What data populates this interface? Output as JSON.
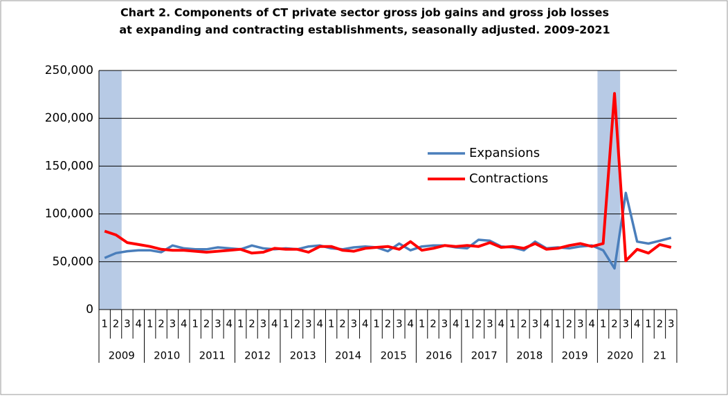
{
  "chart_data": {
    "type": "line",
    "title": [
      "Chart 2. Components of CT private sector gross job gains and gross  job losses",
      "at expanding and contracting establishments, seasonally adjusted.  2009-2021"
    ],
    "groups": [
      {
        "label": "2009",
        "categories": [
          "1",
          "2",
          "3",
          "4"
        ]
      },
      {
        "label": "2010",
        "categories": [
          "1",
          "2",
          "3",
          "4"
        ]
      },
      {
        "label": "2011",
        "categories": [
          "1",
          "2",
          "3",
          "4"
        ]
      },
      {
        "label": "2012",
        "categories": [
          "1",
          "2",
          "3",
          "4"
        ]
      },
      {
        "label": "2013",
        "categories": [
          "1",
          "2",
          "3",
          "4"
        ]
      },
      {
        "label": "2014",
        "categories": [
          "1",
          "2",
          "3",
          "4"
        ]
      },
      {
        "label": "2015",
        "categories": [
          "1",
          "2",
          "3",
          "4"
        ]
      },
      {
        "label": "2016",
        "categories": [
          "1",
          "2",
          "3",
          "4"
        ]
      },
      {
        "label": "2017",
        "categories": [
          "1",
          "2",
          "3",
          "4"
        ]
      },
      {
        "label": "2018",
        "categories": [
          "1",
          "2",
          "3",
          "4"
        ]
      },
      {
        "label": "2019",
        "categories": [
          "1",
          "2",
          "3",
          "4"
        ]
      },
      {
        "label": "2020",
        "categories": [
          "1",
          "2",
          "3",
          "4"
        ]
      },
      {
        "label": "21",
        "categories": [
          "1",
          "2",
          "3"
        ]
      }
    ],
    "series": [
      {
        "name": "Expansions",
        "color": "#4a7ebb",
        "values": [
          54000,
          59000,
          61000,
          62000,
          62000,
          60000,
          67000,
          64000,
          63000,
          63000,
          65000,
          64000,
          63000,
          67000,
          64000,
          63000,
          64000,
          63000,
          66000,
          67000,
          64000,
          63000,
          65000,
          66000,
          65000,
          61000,
          69000,
          62000,
          66000,
          67000,
          67000,
          65000,
          64000,
          73000,
          72000,
          66000,
          65000,
          62000,
          71000,
          64000,
          65000,
          64000,
          66000,
          67000,
          62000,
          43000,
          122000,
          71000,
          69000,
          72000,
          75000
        ]
      },
      {
        "name": "Contractions",
        "color": "#ff0000",
        "values": [
          82000,
          78000,
          70000,
          68000,
          66000,
          63000,
          62000,
          62000,
          61000,
          60000,
          61000,
          62000,
          63000,
          59000,
          60000,
          64000,
          63000,
          63000,
          60000,
          66000,
          66000,
          62000,
          61000,
          64000,
          65000,
          66000,
          63000,
          71000,
          62000,
          64000,
          67000,
          66000,
          67000,
          66000,
          70000,
          65000,
          66000,
          64000,
          69000,
          63000,
          64000,
          67000,
          69000,
          66000,
          69000,
          226000,
          51000,
          63000,
          59000,
          68000,
          65000
        ]
      }
    ],
    "ylim": [
      0,
      250000
    ],
    "yticks": [
      {
        "value": 0,
        "label": "0"
      },
      {
        "value": 50000,
        "label": "50,000"
      },
      {
        "value": 100000,
        "label": "100,000"
      },
      {
        "value": 150000,
        "label": "150,000"
      },
      {
        "value": 200000,
        "label": "200,000"
      },
      {
        "value": 250000,
        "label": "250,000"
      }
    ],
    "grid": true
  }
}
